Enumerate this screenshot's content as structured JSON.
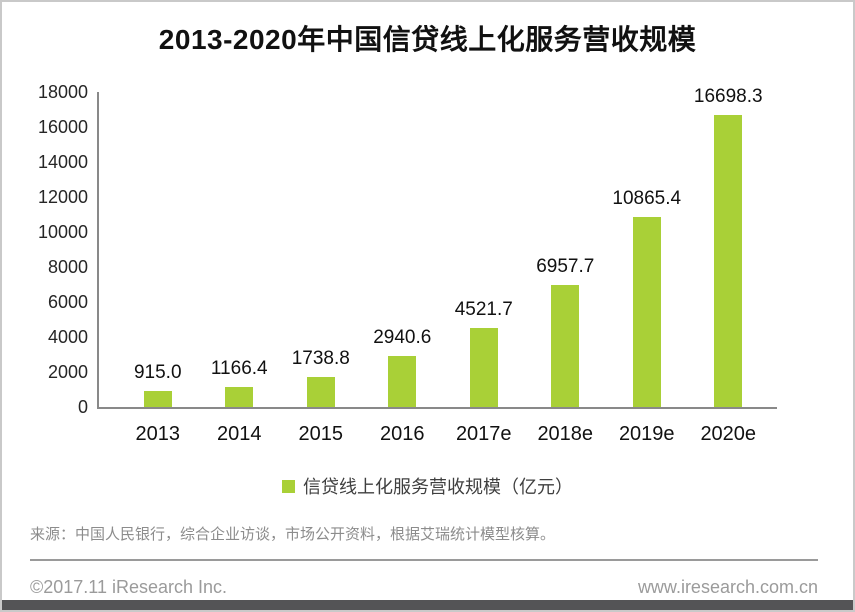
{
  "title": "2013-2020年中国信贷线上化服务营收规模",
  "chart_data": {
    "type": "bar",
    "title": "2013-2020年中国信贷线上化服务营收规模",
    "categories": [
      "2013",
      "2014",
      "2015",
      "2016",
      "2017e",
      "2018e",
      "2019e",
      "2020e"
    ],
    "values": [
      915.0,
      1166.4,
      1738.8,
      2940.6,
      4521.7,
      6957.7,
      10865.4,
      16698.3
    ],
    "labels": [
      "915.0",
      "1166.4",
      "1738.8",
      "2940.6",
      "4521.7",
      "6957.7",
      "10865.4",
      "16698.3"
    ],
    "series_name": "信贷线上化服务营收规模（亿元）",
    "xlabel": "",
    "ylabel": "",
    "ylim": [
      0,
      18000
    ],
    "ytick_step": 2000,
    "yticks": [
      "18000",
      "16000",
      "14000",
      "12000",
      "10000",
      "8000",
      "6000",
      "4000",
      "2000",
      "0"
    ],
    "grid": false,
    "legend_position": "bottom",
    "bar_color": "#a9d037"
  },
  "legend": {
    "label": "信贷线上化服务营收规模（亿元）",
    "marker_color": "#a9d037"
  },
  "source_note": "来源：中国人民银行，综合企业访谈，市场公开资料，根据艾瑞统计模型核算。",
  "footer": {
    "copyright": "©2017.11 iResearch Inc.",
    "website": "www.iresearch.com.cn"
  },
  "colors": {
    "bar": "#a9d037",
    "axis": "#898989",
    "title_text": "#111111",
    "source_text": "#8c8c8c",
    "footer_text": "#9b9b9b",
    "bottom_bar": "#545456"
  }
}
